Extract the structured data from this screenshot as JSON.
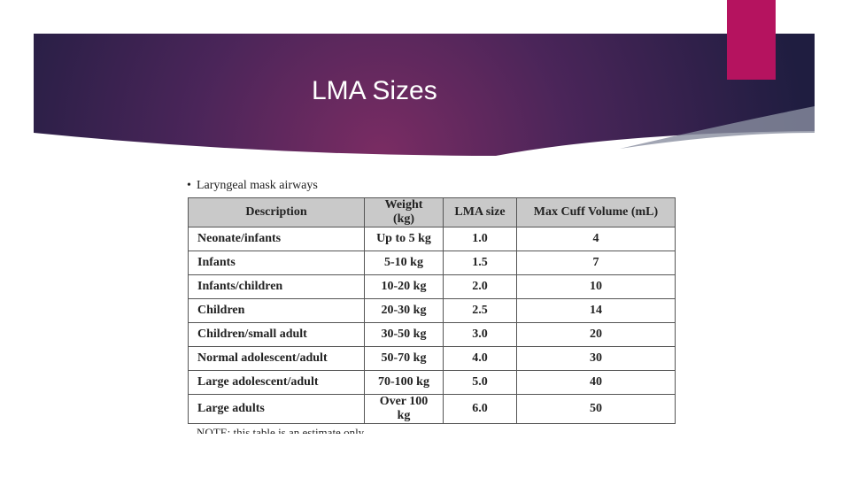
{
  "header": {
    "title": "LMA Sizes"
  },
  "content": {
    "bullet": "Laryngeal mask airways",
    "table": {
      "headers": [
        "Description",
        "Weight (kg)",
        "LMA size",
        "Max Cuff Volume (mL)"
      ],
      "rows": [
        [
          "Neonate/infants",
          "Up to 5 kg",
          "1.0",
          "4"
        ],
        [
          "Infants",
          "5-10 kg",
          "1.5",
          "7"
        ],
        [
          "Infants/children",
          "10-20 kg",
          "2.0",
          "10"
        ],
        [
          "Children",
          "20-30 kg",
          "2.5",
          "14"
        ],
        [
          "Children/small adult",
          "30-50 kg",
          "3.0",
          "20"
        ],
        [
          "Normal adolescent/adult",
          "50-70 kg",
          "4.0",
          "30"
        ],
        [
          "Large adolescent/adult",
          "70-100 kg",
          "5.0",
          "40"
        ],
        [
          "Large adults",
          "Over 100 kg",
          "6.0",
          "50"
        ]
      ]
    },
    "note": "NOTE: this table is an estimate only"
  }
}
